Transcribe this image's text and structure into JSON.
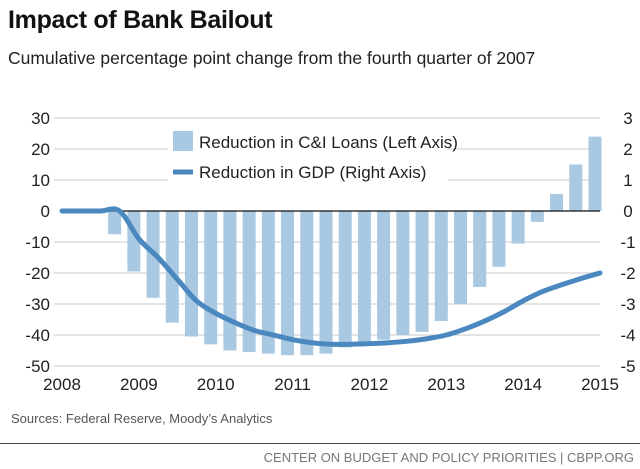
{
  "chart_data": {
    "type": "bar+line",
    "title": "Impact of Bank Bailout",
    "subtitle": "Cumulative percentage point change from the fourth quarter of 2007",
    "x_ticks": [
      "2008",
      "2009",
      "2010",
      "2011",
      "2012",
      "2013",
      "2014",
      "2015"
    ],
    "xlim": [
      2008,
      2015
    ],
    "left_axis": {
      "ylim": [
        -50,
        30
      ],
      "ticks": [
        "30",
        "20",
        "10",
        "0",
        "-10",
        "-20",
        "-30",
        "-40",
        "-50"
      ]
    },
    "right_axis": {
      "ylim": [
        -5,
        3
      ],
      "ticks": [
        "3",
        "2",
        "1",
        "0",
        "-1",
        "-2",
        "-3",
        "-4",
        "-5"
      ]
    },
    "grid": true,
    "legend_placement": "top-center",
    "series": [
      {
        "name": "Reduction in C&I Loans (Left Axis)",
        "type": "bar",
        "axis": "left",
        "color": "#a9c8e2",
        "x": [
          2008.75,
          2009.0,
          2009.25,
          2009.5,
          2009.75,
          2010.0,
          2010.25,
          2010.5,
          2010.75,
          2011.0,
          2011.25,
          2011.5,
          2011.75,
          2012.0,
          2012.25,
          2012.5,
          2012.75,
          2013.0,
          2013.25,
          2013.5,
          2013.75,
          2014.0,
          2014.25,
          2014.5,
          2014.75,
          2015.0
        ],
        "values": [
          -7.5,
          -19.5,
          -28,
          -36,
          -40.5,
          -43,
          -45,
          -45.5,
          -46,
          -46.5,
          -46.5,
          -46,
          -44,
          -43.5,
          -41.5,
          -40,
          -39,
          -35.5,
          -30,
          -24.5,
          -18,
          -10.5,
          -3.5,
          5.5,
          15,
          24
        ]
      },
      {
        "name": "Reduction in GDP (Right Axis)",
        "type": "line",
        "axis": "right",
        "color": "#4a88bf",
        "x": [
          2008.0,
          2008.25,
          2008.5,
          2008.75,
          2009.0,
          2009.25,
          2009.5,
          2009.75,
          2010.0,
          2010.25,
          2010.5,
          2010.75,
          2011.0,
          2011.25,
          2011.5,
          2011.75,
          2012.0,
          2012.25,
          2012.5,
          2012.75,
          2013.0,
          2013.25,
          2013.5,
          2013.75,
          2014.0,
          2014.25,
          2014.5,
          2014.75,
          2015.0
        ],
        "values": [
          0,
          0,
          0,
          0,
          -0.9,
          -1.5,
          -2.2,
          -2.9,
          -3.3,
          -3.6,
          -3.85,
          -4.0,
          -4.15,
          -4.25,
          -4.3,
          -4.3,
          -4.28,
          -4.25,
          -4.2,
          -4.12,
          -4.0,
          -3.8,
          -3.55,
          -3.25,
          -2.9,
          -2.6,
          -2.38,
          -2.18,
          -2.0
        ]
      }
    ],
    "sources": "Sources: Federal Reserve, Moody’s Analytics",
    "footer": "CENTER ON BUDGET AND POLICY PRIORITIES | CBPP.ORG"
  }
}
